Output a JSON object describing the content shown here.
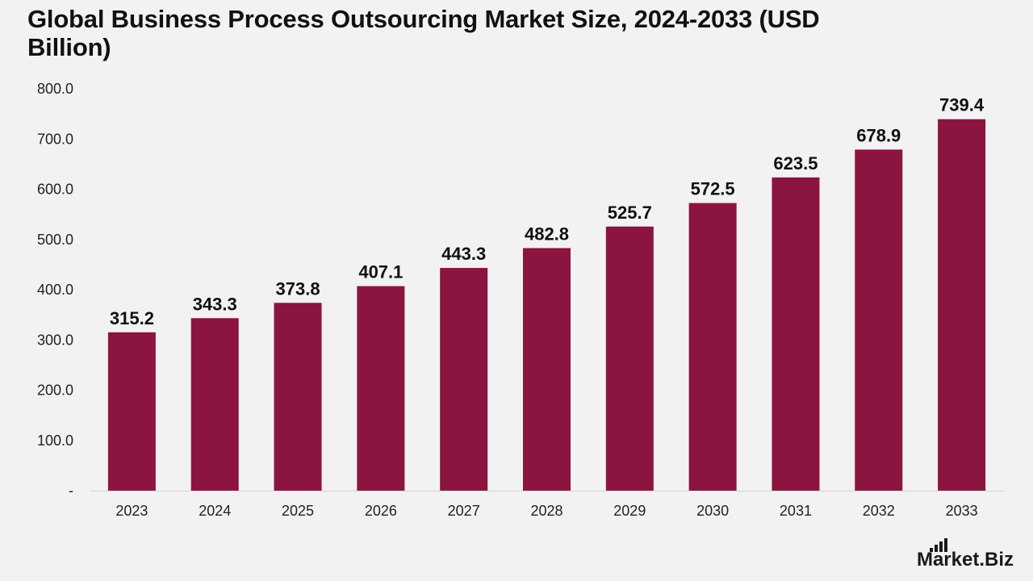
{
  "title": "Global Business Process Outsourcing Market Size, 2024-2033 (USD Billion)",
  "brand": "Market.Biz",
  "colors": {
    "bar": "#8b1440",
    "background": "#f2f2f2",
    "axis": "#d0d0d0"
  },
  "chart_data": {
    "type": "bar",
    "title": "Global Business Process Outsourcing Market Size, 2024-2033 (USD Billion)",
    "categories": [
      "2023",
      "2024",
      "2025",
      "2026",
      "2027",
      "2028",
      "2029",
      "2030",
      "2031",
      "2032",
      "2033"
    ],
    "values": [
      315.2,
      343.3,
      373.8,
      407.1,
      443.3,
      482.8,
      525.7,
      572.5,
      623.5,
      678.9,
      739.4
    ],
    "value_labels": [
      "315.2",
      "343.3",
      "373.8",
      "407.1",
      "443.3",
      "482.8",
      "525.7",
      "572.5",
      "623.5",
      "678.9",
      "739.4"
    ],
    "ylim": [
      0,
      800
    ],
    "yticks": [
      0,
      100,
      200,
      300,
      400,
      500,
      600,
      700,
      800
    ],
    "ytick_labels": [
      "-",
      "100.0",
      "200.0",
      "300.0",
      "400.0",
      "500.0",
      "600.0",
      "700.0",
      "800.0"
    ],
    "xlabel": "",
    "ylabel": "",
    "grid": false,
    "legend": "none"
  }
}
